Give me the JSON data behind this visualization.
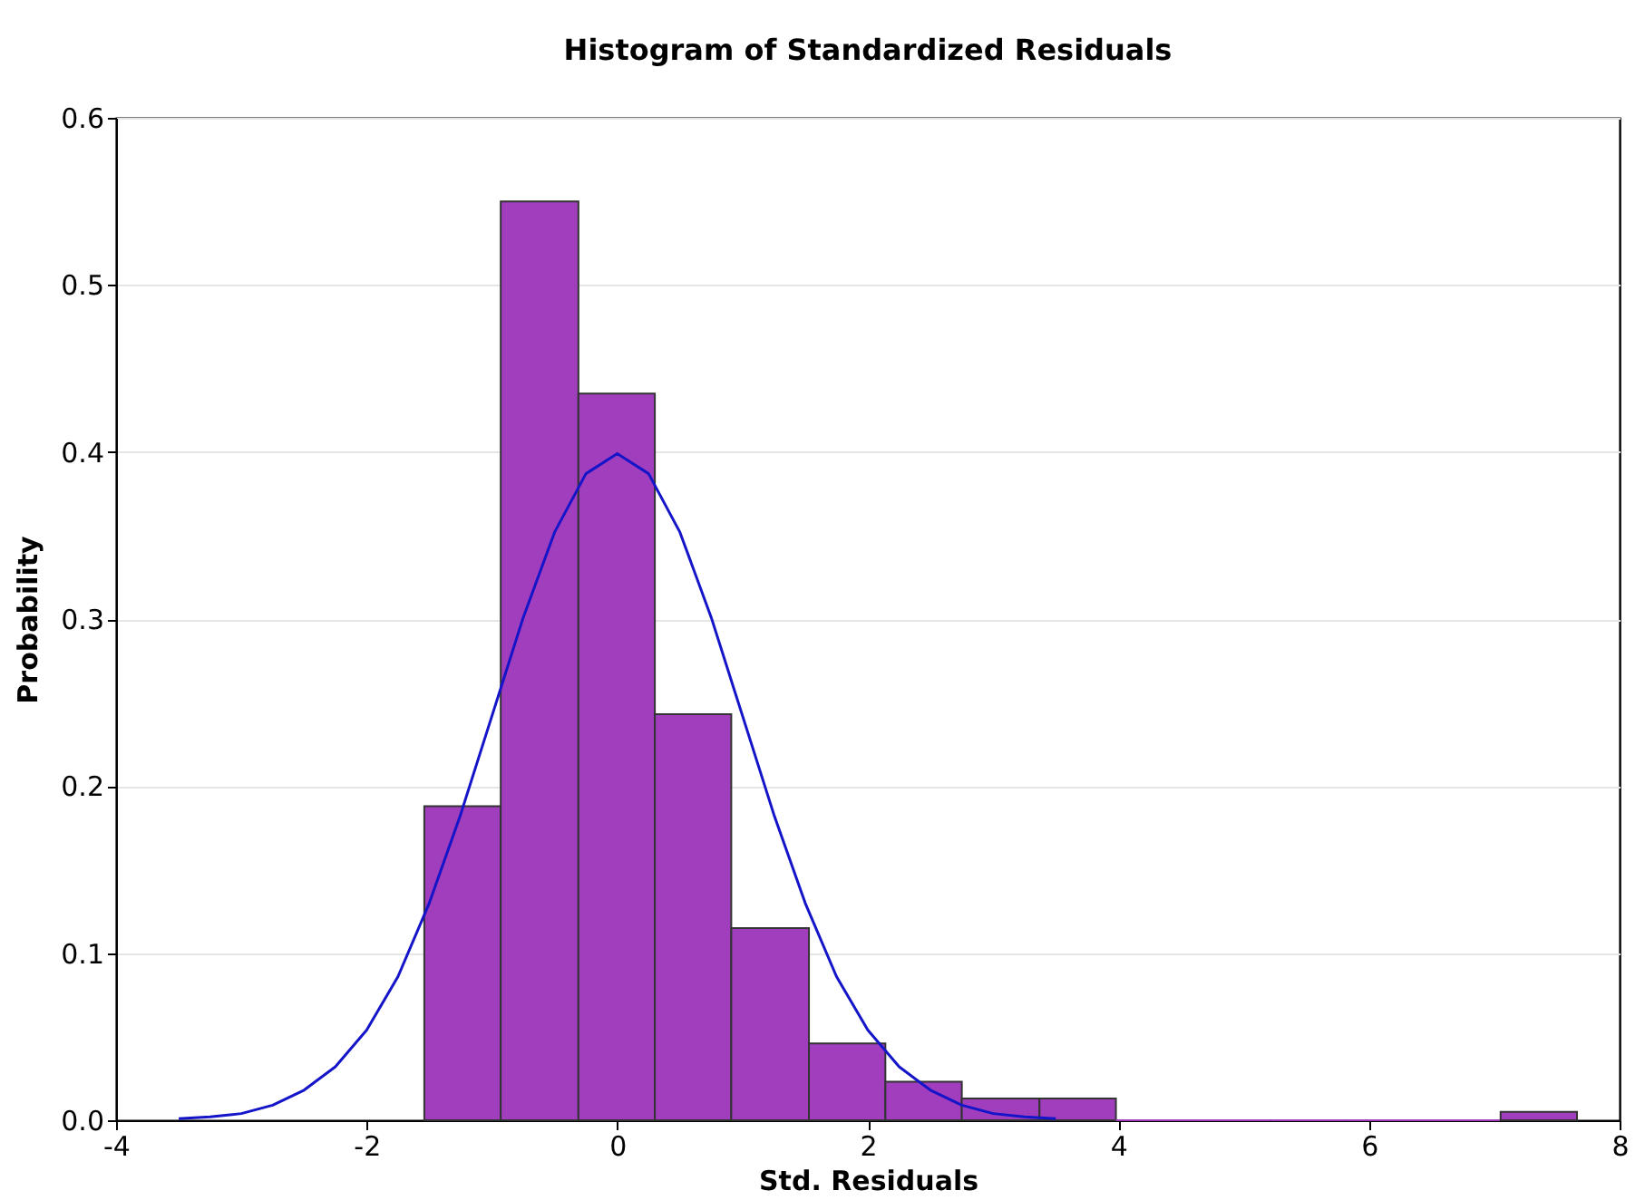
{
  "chart_data": {
    "type": "histogram",
    "title": "Histogram of Standardized Residuals",
    "xlabel": "Std. Residuals",
    "ylabel": "Probability",
    "bins": [
      -1.54,
      -0.93,
      -0.31,
      0.3,
      0.91,
      1.53,
      2.14,
      2.75,
      3.37,
      3.98,
      4.59,
      5.21,
      5.82,
      6.43,
      7.05,
      7.66
    ],
    "values": [
      0.188,
      0.55,
      0.435,
      0.243,
      0.115,
      0.046,
      0.023,
      0.013,
      0.013,
      0,
      0,
      0,
      0,
      0,
      0.005
    ],
    "color": "#a03ebe",
    "series": [
      {
        "type": "line",
        "color": "#1414c8",
        "x": [
          -3.5,
          -3.25,
          -3,
          -2.75,
          -2.5,
          -2.25,
          -2,
          -1.75,
          -1.5,
          -1.25,
          -1,
          -0.75,
          -0.5,
          -0.25,
          0,
          0.25,
          0.5,
          0.75,
          1,
          1.25,
          1.5,
          1.75,
          2,
          2.25,
          2.5,
          2.75,
          3,
          3.25,
          3.5
        ],
        "values": [
          0.001,
          0.002,
          0.004,
          0.009,
          0.018,
          0.032,
          0.054,
          0.086,
          0.13,
          0.183,
          0.242,
          0.301,
          0.352,
          0.387,
          0.399,
          0.387,
          0.352,
          0.301,
          0.242,
          0.183,
          0.13,
          0.086,
          0.054,
          0.032,
          0.018,
          0.009,
          0.004,
          0.002,
          0.001
        ]
      }
    ],
    "xlim": [
      -4,
      8
    ],
    "xticks": [
      -4,
      -2,
      0,
      2,
      4,
      6,
      8
    ],
    "ylim": [
      0,
      0.6
    ],
    "yticks": [
      {
        "value": 0,
        "label": "0.0"
      },
      0.1,
      0.2,
      0.3,
      0.4,
      0.5,
      0.6
    ],
    "grid": "y"
  }
}
